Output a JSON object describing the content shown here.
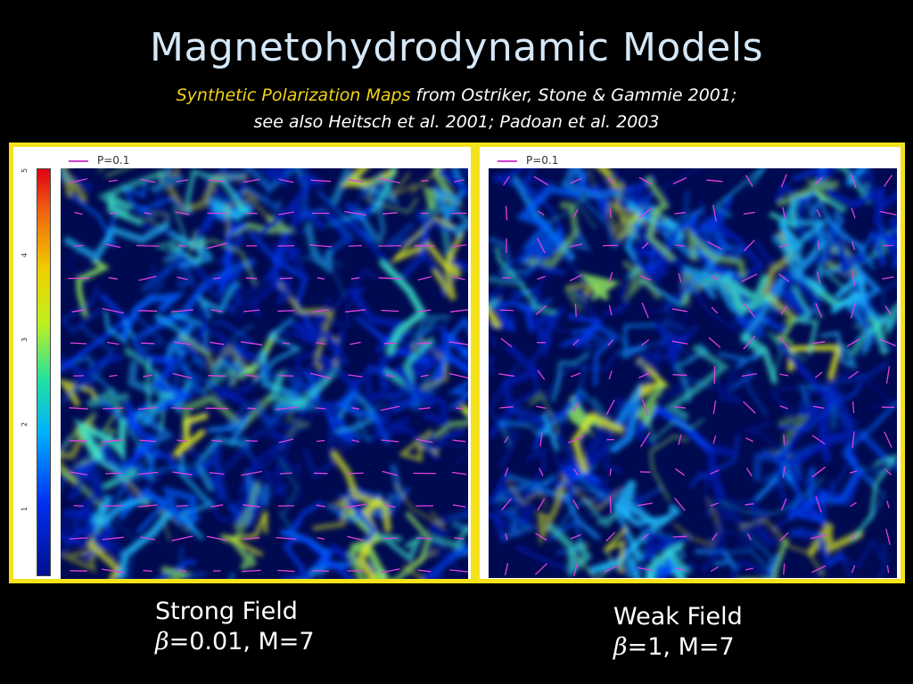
{
  "slide": {
    "title": "Magnetohydrodynamic Models",
    "subtitle_highlight": "Synthetic Polarization Maps",
    "subtitle_rest": " from Ostriker, Stone & Gammie 2001;",
    "subtitle_line2": "see also Heitsch et al. 2001; Padoan et al. 2003"
  },
  "left_panel": {
    "legend_label": "P=0.1",
    "colorbar_ticks": [
      "5",
      "4",
      "3",
      "2",
      "1"
    ],
    "caption_line1": "Strong Field",
    "beta_symbol": "β",
    "caption_line2": "=0.01, M=7"
  },
  "right_panel": {
    "legend_label": "P=0.1",
    "caption_line1": "Weak Field",
    "beta_symbol": "β",
    "caption_line2": "=1, M=7"
  },
  "colors": {
    "frame": "#f3e21c",
    "vectors": "#e040e0",
    "highlight": "#f2d21a",
    "title": "#d6e8f8"
  }
}
